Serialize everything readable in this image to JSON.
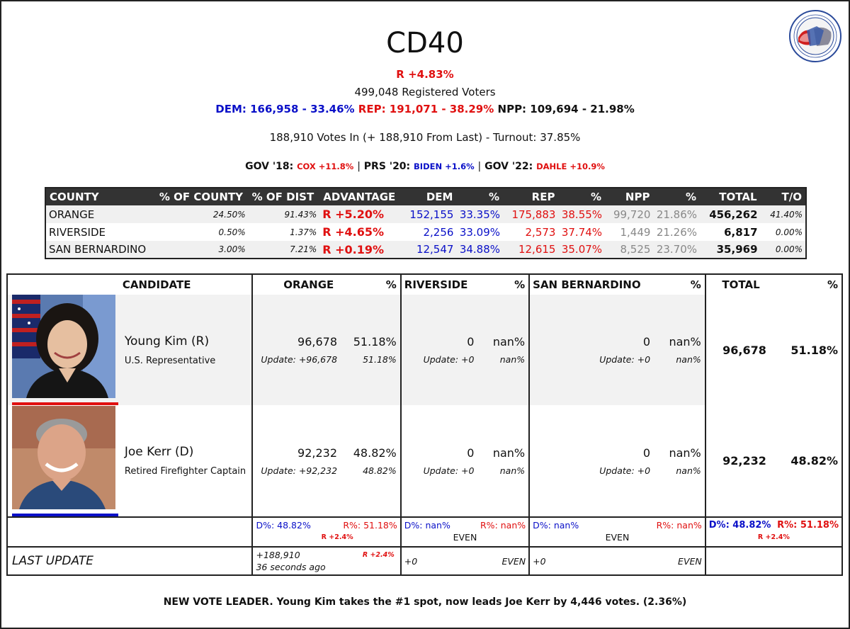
{
  "header": {
    "title": "CD40",
    "advantage": "R +4.83%",
    "registered": "499,048 Registered Voters",
    "dem": "DEM: 166,958 - 33.46%",
    "rep": "REP: 191,071 - 38.29%",
    "npp": "NPP: 109,694 - 21.98%",
    "votes_in": "188,910 Votes In (+ 188,910 From Last) - Turnout: 37.85%",
    "hist": {
      "gov18_label": "GOV '18:",
      "gov18_val": "COX +11.8%",
      "prs20_label": "PRS '20:",
      "prs20_val": "BIDEN +1.6%",
      "gov22_label": "GOV '22:",
      "gov22_val": "DAHLE +10.9%",
      "sep": "|"
    }
  },
  "seal": {
    "top_text": "CALIFORNIA TARGET BOOK",
    "bottom_text": "Founded 1993",
    "colors": {
      "blue": "#2a4a9a",
      "red": "#d02020"
    }
  },
  "county_table": {
    "headers": [
      "COUNTY",
      "% OF COUNTY",
      "% OF DIST",
      "ADVANTAGE",
      "DEM",
      "%",
      "REP",
      "%",
      "NPP",
      "%",
      "TOTAL",
      "T/O"
    ],
    "rows": [
      [
        "ORANGE",
        "24.50%",
        "91.43%",
        "R +5.20%",
        "152,155",
        "33.35%",
        "175,883",
        "38.55%",
        "99,720",
        "21.86%",
        "456,262",
        "41.40%"
      ],
      [
        "RIVERSIDE",
        "0.50%",
        "1.37%",
        "R +4.65%",
        "2,256",
        "33.09%",
        "2,573",
        "37.74%",
        "1,449",
        "21.26%",
        "6,817",
        "0.00%"
      ],
      [
        "SAN BERNARDINO",
        "3.00%",
        "7.21%",
        "R +0.19%",
        "12,547",
        "34.88%",
        "12,615",
        "35.07%",
        "8,525",
        "23.70%",
        "35,969",
        "0.00%"
      ]
    ]
  },
  "candidates": {
    "headers": {
      "candidate": "CANDIDATE",
      "orange": "ORANGE",
      "riverside": "RIVERSIDE",
      "sanbern": "SAN BERNARDINO",
      "total": "TOTAL",
      "pct": "%"
    },
    "rows": [
      {
        "name": "Young Kim (R)",
        "title": "U.S. Representative",
        "orange": "96,678",
        "orange_pct": "51.18%",
        "orange_upd": "Update: +96,678",
        "orange_upd_pct": "51.18%",
        "riverside": "0",
        "riverside_pct": "nan%",
        "riverside_upd": "Update: +0",
        "riverside_upd_pct": "nan%",
        "sanbern": "0",
        "sanbern_pct": "nan%",
        "sanbern_upd": "Update: +0",
        "sanbern_upd_pct": "nan%",
        "total": "96,678",
        "total_pct": "51.18%"
      },
      {
        "name": "Joe Kerr (D)",
        "title": "Retired Firefighter Captain",
        "orange": "92,232",
        "orange_pct": "48.82%",
        "orange_upd": "Update: +92,232",
        "orange_upd_pct": "48.82%",
        "riverside": "0",
        "riverside_pct": "nan%",
        "riverside_upd": "Update: +0",
        "riverside_upd_pct": "nan%",
        "sanbern": "0",
        "sanbern_pct": "nan%",
        "sanbern_upd": "Update: +0",
        "sanbern_upd_pct": "nan%",
        "total": "92,232",
        "total_pct": "48.82%"
      }
    ],
    "summary": {
      "orange_d": "D%: 48.82%",
      "orange_r": "R%: 51.18%",
      "orange_adv": "R +2.4%",
      "riverside_d": "D%: nan%",
      "riverside_r": "R%: nan%",
      "riverside_adv": "EVEN",
      "sanbern_d": "D%: nan%",
      "sanbern_r": "R%: nan%",
      "sanbern_adv": "EVEN",
      "total_d": "D%: 48.82%",
      "total_r": "R%: 51.18%",
      "total_adv": "R +2.4%"
    },
    "last_update": {
      "label": "LAST UPDATE",
      "orange_votes": "+188,910",
      "orange_time": "36 seconds ago",
      "orange_adv": "R +2.4%",
      "riverside_votes": "+0",
      "riverside_adv": "EVEN",
      "sanbern_votes": "+0",
      "sanbern_adv": "EVEN"
    }
  },
  "footer": "NEW VOTE LEADER. Young Kim takes the #1 spot, now leads Joe Kerr by 4,446 votes. (2.36%)"
}
